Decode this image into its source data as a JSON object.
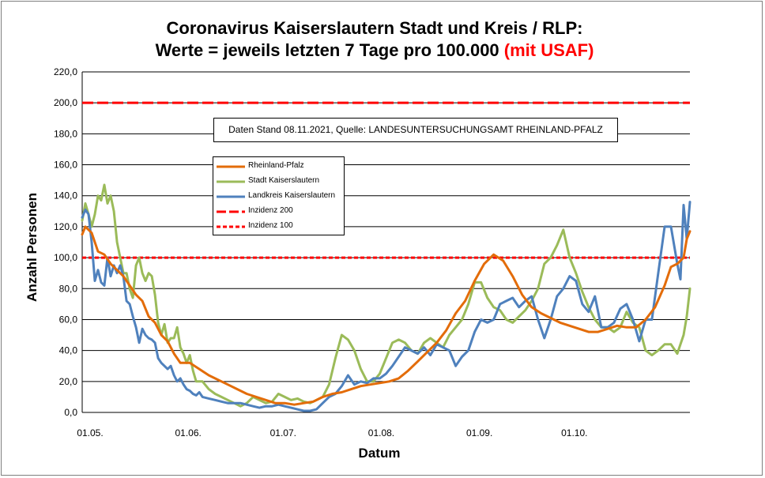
{
  "title": {
    "line1": "Coronavirus Kaiserslautern Stadt und Kreis / RLP:",
    "line2_main": "Werte = jeweils letzten 7 Tage pro 100.000 ",
    "line2_highlight": "(mit USAF)"
  },
  "note": "Daten Stand 08.11.2021, Quelle: LANDESUNTERSUCHUNGSAMT RHEINLAND-PFALZ",
  "colors": {
    "rlp": "#e36c09",
    "stadt": "#9bbb59",
    "landkreis": "#4f81bd",
    "incidence": "#ff0000"
  },
  "chart_data": {
    "type": "line",
    "title": "Coronavirus Kaiserslautern Stadt und Kreis / RLP: Werte = jeweils letzten 7 Tage pro 100.000 (mit USAF)",
    "xlabel": "Datum",
    "ylabel": "Anzahl Personen",
    "ylim": [
      0,
      220
    ],
    "yticks": [
      "0,0",
      "20,0",
      "40,0",
      "60,0",
      "80,0",
      "100,0",
      "120,0",
      "140,0",
      "160,0",
      "180,0",
      "200,0",
      "220,0"
    ],
    "xticks": [
      {
        "label": "01.05.",
        "day": 0
      },
      {
        "label": "01.06.",
        "day": 31
      },
      {
        "label": "01.07.",
        "day": 61
      },
      {
        "label": "01.08.",
        "day": 92
      },
      {
        "label": "01.09.",
        "day": 123
      },
      {
        "label": "01.10.",
        "day": 153
      }
    ],
    "x_range_days": [
      0,
      192
    ],
    "x_unit": "days since 01.05.2021",
    "grid": "horizontal",
    "reference_lines": [
      {
        "name": "Inzidenz 200",
        "value": 200,
        "style": "long-dash"
      },
      {
        "name": "Inzidenz 100",
        "value": 100,
        "style": "short-dash"
      }
    ],
    "series": [
      {
        "name": "Rheinland-Pfalz",
        "key": "rlp",
        "points": [
          [
            0,
            115
          ],
          [
            1,
            120
          ],
          [
            3,
            116
          ],
          [
            5,
            104
          ],
          [
            7,
            102
          ],
          [
            9,
            96
          ],
          [
            11,
            92
          ],
          [
            13,
            88
          ],
          [
            15,
            82
          ],
          [
            17,
            76
          ],
          [
            19,
            72
          ],
          [
            21,
            62
          ],
          [
            23,
            58
          ],
          [
            25,
            50
          ],
          [
            27,
            46
          ],
          [
            29,
            38
          ],
          [
            31,
            32
          ],
          [
            34,
            32
          ],
          [
            37,
            28
          ],
          [
            40,
            24
          ],
          [
            43,
            21
          ],
          [
            46,
            18
          ],
          [
            49,
            15
          ],
          [
            52,
            12
          ],
          [
            55,
            10
          ],
          [
            58,
            8
          ],
          [
            61,
            6
          ],
          [
            64,
            6
          ],
          [
            67,
            5
          ],
          [
            70,
            6
          ],
          [
            73,
            7
          ],
          [
            76,
            10
          ],
          [
            79,
            12
          ],
          [
            82,
            13
          ],
          [
            85,
            15
          ],
          [
            88,
            17
          ],
          [
            91,
            18
          ],
          [
            94,
            19
          ],
          [
            97,
            20
          ],
          [
            100,
            22
          ],
          [
            103,
            27
          ],
          [
            106,
            33
          ],
          [
            109,
            39
          ],
          [
            112,
            45
          ],
          [
            115,
            53
          ],
          [
            118,
            64
          ],
          [
            121,
            72
          ],
          [
            124,
            85
          ],
          [
            127,
            96
          ],
          [
            130,
            102
          ],
          [
            133,
            98
          ],
          [
            136,
            88
          ],
          [
            139,
            76
          ],
          [
            142,
            68
          ],
          [
            145,
            64
          ],
          [
            148,
            61
          ],
          [
            151,
            58
          ],
          [
            154,
            56
          ],
          [
            157,
            54
          ],
          [
            160,
            52
          ],
          [
            163,
            52
          ],
          [
            166,
            54
          ],
          [
            169,
            56
          ],
          [
            172,
            55
          ],
          [
            175,
            55
          ],
          [
            178,
            60
          ],
          [
            181,
            68
          ],
          [
            184,
            82
          ],
          [
            186,
            94
          ],
          [
            188,
            96
          ],
          [
            189,
            98
          ],
          [
            190,
            100
          ],
          [
            191,
            112
          ],
          [
            192,
            117
          ]
        ]
      },
      {
        "name": "Stadt Kaiserslautern",
        "key": "stadt",
        "points": [
          [
            0,
            124
          ],
          [
            1,
            135
          ],
          [
            2,
            128
          ],
          [
            3,
            120
          ],
          [
            4,
            128
          ],
          [
            5,
            140
          ],
          [
            6,
            137
          ],
          [
            7,
            147
          ],
          [
            8,
            135
          ],
          [
            9,
            140
          ],
          [
            10,
            130
          ],
          [
            11,
            110
          ],
          [
            12,
            100
          ],
          [
            13,
            90
          ],
          [
            14,
            90
          ],
          [
            15,
            80
          ],
          [
            16,
            74
          ],
          [
            17,
            95
          ],
          [
            18,
            100
          ],
          [
            19,
            90
          ],
          [
            20,
            85
          ],
          [
            21,
            90
          ],
          [
            22,
            88
          ],
          [
            23,
            76
          ],
          [
            24,
            58
          ],
          [
            25,
            50
          ],
          [
            26,
            57
          ],
          [
            27,
            45
          ],
          [
            28,
            48
          ],
          [
            29,
            48
          ],
          [
            30,
            55
          ],
          [
            31,
            42
          ],
          [
            32,
            38
          ],
          [
            33,
            32
          ],
          [
            34,
            37
          ],
          [
            35,
            27
          ],
          [
            36,
            20
          ],
          [
            38,
            20
          ],
          [
            40,
            15
          ],
          [
            42,
            12
          ],
          [
            44,
            10
          ],
          [
            46,
            8
          ],
          [
            48,
            6
          ],
          [
            50,
            4
          ],
          [
            52,
            6
          ],
          [
            54,
            10
          ],
          [
            56,
            8
          ],
          [
            58,
            6
          ],
          [
            60,
            7
          ],
          [
            62,
            12
          ],
          [
            64,
            10
          ],
          [
            66,
            8
          ],
          [
            68,
            9
          ],
          [
            70,
            7
          ],
          [
            72,
            6
          ],
          [
            74,
            8
          ],
          [
            76,
            10
          ],
          [
            78,
            18
          ],
          [
            80,
            35
          ],
          [
            82,
            50
          ],
          [
            84,
            47
          ],
          [
            86,
            40
          ],
          [
            88,
            28
          ],
          [
            90,
            20
          ],
          [
            92,
            20
          ],
          [
            94,
            25
          ],
          [
            96,
            35
          ],
          [
            98,
            45
          ],
          [
            100,
            47
          ],
          [
            102,
            45
          ],
          [
            104,
            40
          ],
          [
            106,
            38
          ],
          [
            108,
            45
          ],
          [
            110,
            48
          ],
          [
            112,
            45
          ],
          [
            114,
            42
          ],
          [
            116,
            50
          ],
          [
            118,
            55
          ],
          [
            120,
            60
          ],
          [
            122,
            70
          ],
          [
            124,
            84
          ],
          [
            126,
            84
          ],
          [
            128,
            74
          ],
          [
            130,
            68
          ],
          [
            132,
            66
          ],
          [
            134,
            60
          ],
          [
            136,
            58
          ],
          [
            138,
            62
          ],
          [
            140,
            66
          ],
          [
            142,
            72
          ],
          [
            144,
            80
          ],
          [
            146,
            96
          ],
          [
            148,
            100
          ],
          [
            150,
            108
          ],
          [
            152,
            118
          ],
          [
            154,
            100
          ],
          [
            156,
            90
          ],
          [
            158,
            78
          ],
          [
            160,
            68
          ],
          [
            162,
            60
          ],
          [
            164,
            55
          ],
          [
            166,
            55
          ],
          [
            168,
            52
          ],
          [
            170,
            55
          ],
          [
            172,
            65
          ],
          [
            174,
            58
          ],
          [
            176,
            55
          ],
          [
            178,
            40
          ],
          [
            180,
            37
          ],
          [
            182,
            40
          ],
          [
            184,
            44
          ],
          [
            186,
            44
          ],
          [
            188,
            38
          ],
          [
            190,
            50
          ],
          [
            191,
            62
          ],
          [
            192,
            80
          ]
        ]
      },
      {
        "name": "Landkreis Kaiserslautern",
        "key": "landkreis",
        "points": [
          [
            0,
            126
          ],
          [
            1,
            131
          ],
          [
            2,
            128
          ],
          [
            3,
            110
          ],
          [
            4,
            85
          ],
          [
            5,
            92
          ],
          [
            6,
            84
          ],
          [
            7,
            82
          ],
          [
            8,
            100
          ],
          [
            9,
            88
          ],
          [
            10,
            95
          ],
          [
            11,
            90
          ],
          [
            12,
            95
          ],
          [
            13,
            88
          ],
          [
            14,
            72
          ],
          [
            15,
            70
          ],
          [
            16,
            62
          ],
          [
            17,
            55
          ],
          [
            18,
            45
          ],
          [
            19,
            54
          ],
          [
            20,
            50
          ],
          [
            21,
            48
          ],
          [
            22,
            47
          ],
          [
            23,
            45
          ],
          [
            24,
            35
          ],
          [
            25,
            32
          ],
          [
            26,
            30
          ],
          [
            27,
            28
          ],
          [
            28,
            30
          ],
          [
            29,
            24
          ],
          [
            30,
            20
          ],
          [
            31,
            22
          ],
          [
            32,
            18
          ],
          [
            33,
            15
          ],
          [
            34,
            14
          ],
          [
            35,
            12
          ],
          [
            36,
            11
          ],
          [
            37,
            13
          ],
          [
            38,
            10
          ],
          [
            40,
            9
          ],
          [
            42,
            8
          ],
          [
            44,
            7
          ],
          [
            46,
            6
          ],
          [
            48,
            6
          ],
          [
            50,
            6
          ],
          [
            52,
            5
          ],
          [
            54,
            4
          ],
          [
            56,
            3
          ],
          [
            58,
            4
          ],
          [
            60,
            4
          ],
          [
            62,
            5
          ],
          [
            64,
            4
          ],
          [
            66,
            3
          ],
          [
            68,
            2
          ],
          [
            70,
            1
          ],
          [
            72,
            1
          ],
          [
            74,
            2
          ],
          [
            76,
            6
          ],
          [
            78,
            10
          ],
          [
            80,
            12
          ],
          [
            82,
            17
          ],
          [
            84,
            24
          ],
          [
            86,
            18
          ],
          [
            88,
            20
          ],
          [
            90,
            19
          ],
          [
            92,
            22
          ],
          [
            94,
            22
          ],
          [
            96,
            25
          ],
          [
            98,
            30
          ],
          [
            100,
            36
          ],
          [
            102,
            42
          ],
          [
            104,
            40
          ],
          [
            106,
            38
          ],
          [
            108,
            42
          ],
          [
            110,
            37
          ],
          [
            112,
            44
          ],
          [
            114,
            42
          ],
          [
            116,
            40
          ],
          [
            118,
            30
          ],
          [
            120,
            36
          ],
          [
            122,
            40
          ],
          [
            124,
            52
          ],
          [
            126,
            60
          ],
          [
            128,
            58
          ],
          [
            130,
            60
          ],
          [
            132,
            70
          ],
          [
            134,
            72
          ],
          [
            136,
            74
          ],
          [
            138,
            68
          ],
          [
            140,
            72
          ],
          [
            142,
            75
          ],
          [
            144,
            60
          ],
          [
            146,
            48
          ],
          [
            148,
            60
          ],
          [
            150,
            75
          ],
          [
            152,
            80
          ],
          [
            154,
            88
          ],
          [
            156,
            85
          ],
          [
            158,
            70
          ],
          [
            160,
            65
          ],
          [
            162,
            75
          ],
          [
            164,
            55
          ],
          [
            166,
            55
          ],
          [
            168,
            58
          ],
          [
            170,
            67
          ],
          [
            172,
            70
          ],
          [
            174,
            60
          ],
          [
            176,
            46
          ],
          [
            178,
            60
          ],
          [
            180,
            60
          ],
          [
            182,
            90
          ],
          [
            184,
            120
          ],
          [
            186,
            120
          ],
          [
            188,
            96
          ],
          [
            189,
            86
          ],
          [
            190,
            134
          ],
          [
            191,
            112
          ],
          [
            192,
            136
          ]
        ]
      }
    ]
  }
}
